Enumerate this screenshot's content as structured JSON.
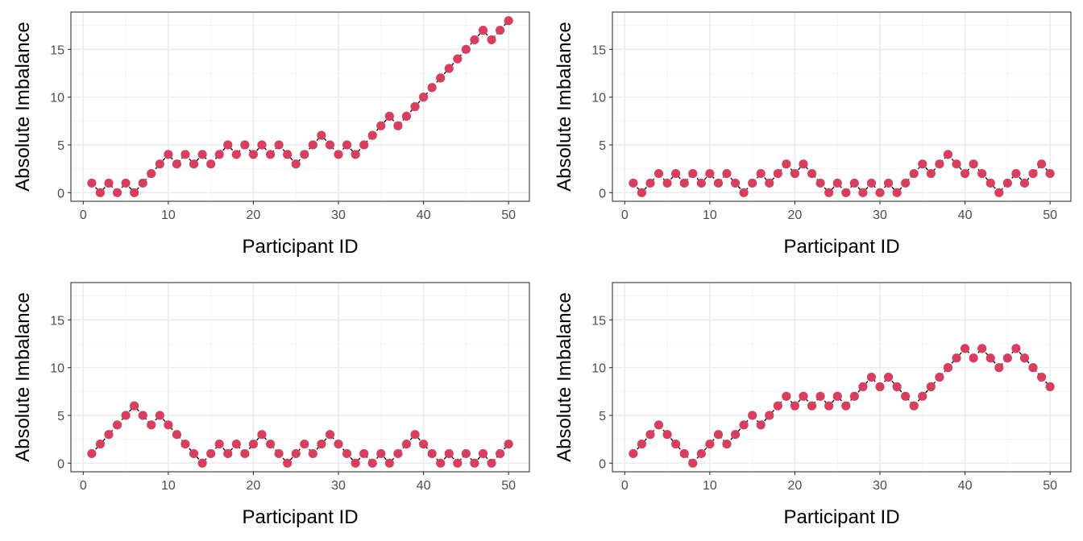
{
  "colors": {
    "point": "#d6405f",
    "line": "#000000",
    "grid_major": "#ebebeb",
    "grid_minor": "#f4f4f4",
    "panel_border": "#333333",
    "background": "#ffffff"
  },
  "chart_data": [
    {
      "type": "line",
      "xlabel": "Participant ID",
      "ylabel": "Absolute Imbalance",
      "xlim": [
        -1.45,
        52.45
      ],
      "ylim": [
        -0.9,
        18.9
      ],
      "x_ticks": [
        0,
        10,
        20,
        30,
        40,
        50
      ],
      "y_ticks": [
        0,
        5,
        10,
        15
      ],
      "grid": true,
      "line_style": "dashed",
      "x": [
        1,
        2,
        3,
        4,
        5,
        6,
        7,
        8,
        9,
        10,
        11,
        12,
        13,
        14,
        15,
        16,
        17,
        18,
        19,
        20,
        21,
        22,
        23,
        24,
        25,
        26,
        27,
        28,
        29,
        30,
        31,
        32,
        33,
        34,
        35,
        36,
        37,
        38,
        39,
        40,
        41,
        42,
        43,
        44,
        45,
        46,
        47,
        48,
        49,
        50
      ],
      "values": [
        1,
        0,
        1,
        0,
        1,
        0,
        1,
        2,
        3,
        4,
        3,
        4,
        3,
        4,
        3,
        4,
        5,
        4,
        5,
        4,
        5,
        4,
        5,
        4,
        3,
        4,
        5,
        6,
        5,
        4,
        5,
        4,
        5,
        6,
        7,
        8,
        7,
        8,
        9,
        10,
        11,
        12,
        13,
        14,
        15,
        16,
        17,
        16,
        17,
        18
      ]
    },
    {
      "type": "line",
      "xlabel": "Participant ID",
      "ylabel": "Absolute Imbalance",
      "xlim": [
        -1.45,
        52.45
      ],
      "ylim": [
        -0.9,
        18.9
      ],
      "x_ticks": [
        0,
        10,
        20,
        30,
        40,
        50
      ],
      "y_ticks": [
        0,
        5,
        10,
        15
      ],
      "grid": true,
      "line_style": "dashed",
      "x": [
        1,
        2,
        3,
        4,
        5,
        6,
        7,
        8,
        9,
        10,
        11,
        12,
        13,
        14,
        15,
        16,
        17,
        18,
        19,
        20,
        21,
        22,
        23,
        24,
        25,
        26,
        27,
        28,
        29,
        30,
        31,
        32,
        33,
        34,
        35,
        36,
        37,
        38,
        39,
        40,
        41,
        42,
        43,
        44,
        45,
        46,
        47,
        48,
        49,
        50
      ],
      "values": [
        1,
        0,
        1,
        2,
        1,
        2,
        1,
        2,
        1,
        2,
        1,
        2,
        1,
        0,
        1,
        2,
        1,
        2,
        3,
        2,
        3,
        2,
        1,
        0,
        1,
        0,
        1,
        0,
        1,
        0,
        1,
        0,
        1,
        2,
        3,
        2,
        3,
        4,
        3,
        2,
        3,
        2,
        1,
        0,
        1,
        2,
        1,
        2,
        3,
        2
      ]
    },
    {
      "type": "line",
      "xlabel": "Participant ID",
      "ylabel": "Absolute Imbalance",
      "xlim": [
        -1.45,
        52.45
      ],
      "ylim": [
        -0.9,
        18.9
      ],
      "x_ticks": [
        0,
        10,
        20,
        30,
        40,
        50
      ],
      "y_ticks": [
        0,
        5,
        10,
        15
      ],
      "grid": true,
      "line_style": "dashed",
      "x": [
        1,
        2,
        3,
        4,
        5,
        6,
        7,
        8,
        9,
        10,
        11,
        12,
        13,
        14,
        15,
        16,
        17,
        18,
        19,
        20,
        21,
        22,
        23,
        24,
        25,
        26,
        27,
        28,
        29,
        30,
        31,
        32,
        33,
        34,
        35,
        36,
        37,
        38,
        39,
        40,
        41,
        42,
        43,
        44,
        45,
        46,
        47,
        48,
        49,
        50
      ],
      "values": [
        1,
        2,
        3,
        4,
        5,
        6,
        5,
        4,
        5,
        4,
        3,
        2,
        1,
        0,
        1,
        2,
        1,
        2,
        1,
        2,
        3,
        2,
        1,
        0,
        1,
        2,
        1,
        2,
        3,
        2,
        1,
        0,
        1,
        0,
        1,
        0,
        1,
        2,
        3,
        2,
        1,
        0,
        1,
        0,
        1,
        0,
        1,
        0,
        1,
        2
      ]
    },
    {
      "type": "line",
      "xlabel": "Participant ID",
      "ylabel": "Absolute Imbalance",
      "xlim": [
        -1.45,
        52.45
      ],
      "ylim": [
        -0.9,
        18.9
      ],
      "x_ticks": [
        0,
        10,
        20,
        30,
        40,
        50
      ],
      "y_ticks": [
        0,
        5,
        10,
        15
      ],
      "grid": true,
      "line_style": "dashed",
      "x": [
        1,
        2,
        3,
        4,
        5,
        6,
        7,
        8,
        9,
        10,
        11,
        12,
        13,
        14,
        15,
        16,
        17,
        18,
        19,
        20,
        21,
        22,
        23,
        24,
        25,
        26,
        27,
        28,
        29,
        30,
        31,
        32,
        33,
        34,
        35,
        36,
        37,
        38,
        39,
        40,
        41,
        42,
        43,
        44,
        45,
        46,
        47,
        48,
        49,
        50
      ],
      "values": [
        1,
        2,
        3,
        4,
        3,
        2,
        1,
        0,
        1,
        2,
        3,
        2,
        3,
        4,
        5,
        4,
        5,
        6,
        7,
        6,
        7,
        6,
        7,
        6,
        7,
        6,
        7,
        8,
        9,
        8,
        9,
        8,
        7,
        6,
        7,
        8,
        9,
        10,
        11,
        12,
        11,
        12,
        11,
        10,
        11,
        12,
        11,
        10,
        9,
        8
      ]
    }
  ]
}
